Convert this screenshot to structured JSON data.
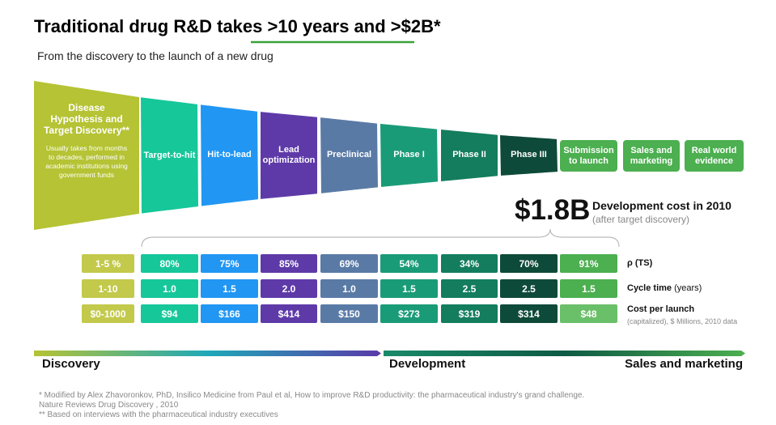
{
  "header": {
    "title": "Traditional drug R&D takes >10 years and >$2B*",
    "subtitle": "From the discovery to the launch of a new drug"
  },
  "stages": [
    {
      "label": "Disease Hypothesis and Target Discovery**",
      "note": "Usually takes from months to decades, performed in academic institutions using government funds"
    },
    {
      "label": "Target-to-hit"
    },
    {
      "label": "Hit-to-lead"
    },
    {
      "label": "Lead optimization"
    },
    {
      "label": "Preclinical"
    },
    {
      "label": "Phase I"
    },
    {
      "label": "Phase II"
    },
    {
      "label": "Phase III"
    },
    {
      "label": "Submission to launch"
    },
    {
      "label": "Sales and marketing"
    },
    {
      "label": "Real world evidence"
    }
  ],
  "callout": {
    "amount": "$1.8B",
    "label": "Development cost in 2010",
    "note": "(after target discovery)"
  },
  "table": {
    "rows": [
      {
        "cells": [
          "1-5 %",
          "80%",
          "75%",
          "85%",
          "69%",
          "54%",
          "34%",
          "70%",
          "91%"
        ],
        "label": "ρ (TS)"
      },
      {
        "cells": [
          "1-10",
          "1.0",
          "1.5",
          "2.0",
          "1.0",
          "1.5",
          "2.5",
          "2.5",
          "1.5"
        ],
        "label": "Cycle time",
        "unit": "(years)"
      },
      {
        "cells": [
          "$0-1000",
          "$94",
          "$166",
          "$414",
          "$150",
          "$273",
          "$319",
          "$314",
          "$48"
        ],
        "label": "Cost per launch",
        "note": "(capitalized), $ Millions, 2010 data"
      }
    ]
  },
  "phases": [
    "Discovery",
    "Development",
    "Sales and marketing"
  ],
  "footnotes": [
    "* Modified by Alex Zhavoronkov, PhD, Insilico Medicine from Paul et al, How to improve R&D productivity: the pharmaceutical industry's grand challenge.",
    "Nature Reviews Drug Discovery , 2010",
    "** Based on interviews with the pharmaceutical industry executives"
  ]
}
